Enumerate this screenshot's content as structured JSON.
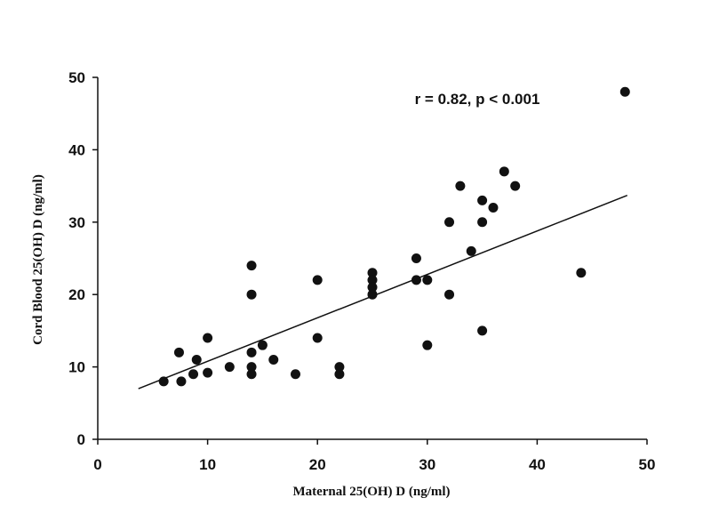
{
  "chart_data": {
    "type": "scatter",
    "xlabel": "Maternal  25(OH) D (ng/ml)",
    "ylabel": "Cord Blood 25(OH) D (ng/ml)",
    "xlim": [
      0,
      50
    ],
    "ylim": [
      0,
      50
    ],
    "x_ticks": [
      0,
      10,
      20,
      30,
      40,
      50
    ],
    "y_ticks": [
      0,
      10,
      20,
      30,
      40,
      50
    ],
    "grid": false,
    "annotation": "r = 0.82, p < 0.001",
    "point_color": "#111111",
    "trendline": {
      "x": [
        3.7,
        48.2
      ],
      "y": [
        7.0,
        33.7
      ]
    },
    "points": [
      {
        "x": 6,
        "y": 8
      },
      {
        "x": 7.4,
        "y": 12
      },
      {
        "x": 7.6,
        "y": 8
      },
      {
        "x": 8.7,
        "y": 9
      },
      {
        "x": 9,
        "y": 11
      },
      {
        "x": 10,
        "y": 9.2
      },
      {
        "x": 10,
        "y": 14
      },
      {
        "x": 12,
        "y": 10
      },
      {
        "x": 14,
        "y": 24
      },
      {
        "x": 14,
        "y": 20
      },
      {
        "x": 14,
        "y": 12
      },
      {
        "x": 14,
        "y": 10
      },
      {
        "x": 14,
        "y": 9
      },
      {
        "x": 15,
        "y": 13
      },
      {
        "x": 16,
        "y": 11
      },
      {
        "x": 18,
        "y": 9
      },
      {
        "x": 20,
        "y": 22
      },
      {
        "x": 20,
        "y": 14
      },
      {
        "x": 22,
        "y": 10
      },
      {
        "x": 22,
        "y": 9
      },
      {
        "x": 25,
        "y": 23
      },
      {
        "x": 25,
        "y": 22
      },
      {
        "x": 25,
        "y": 21
      },
      {
        "x": 25,
        "y": 20
      },
      {
        "x": 29,
        "y": 25
      },
      {
        "x": 29,
        "y": 22
      },
      {
        "x": 30,
        "y": 22
      },
      {
        "x": 30,
        "y": 13
      },
      {
        "x": 32,
        "y": 30
      },
      {
        "x": 32,
        "y": 20
      },
      {
        "x": 33,
        "y": 35
      },
      {
        "x": 34,
        "y": 26
      },
      {
        "x": 35,
        "y": 33
      },
      {
        "x": 35,
        "y": 30
      },
      {
        "x": 35,
        "y": 15
      },
      {
        "x": 36,
        "y": 32
      },
      {
        "x": 37,
        "y": 37
      },
      {
        "x": 38,
        "y": 35
      },
      {
        "x": 44,
        "y": 23
      },
      {
        "x": 48,
        "y": 48
      }
    ]
  }
}
